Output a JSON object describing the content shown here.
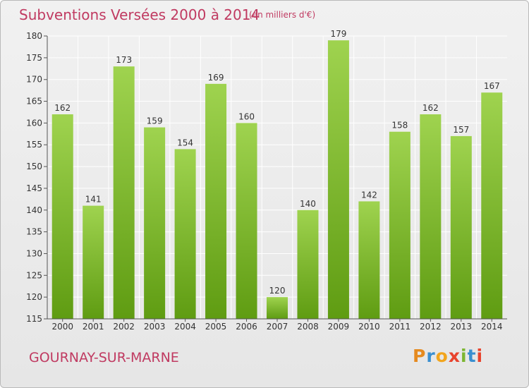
{
  "header": {
    "title": "Subventions Versées 2000 à 2014",
    "unit_note": "(en milliers d'€)"
  },
  "footer": {
    "place_name": "GOURNAY-SUR-MARNE",
    "logo_text": "Proxiti"
  },
  "colors": {
    "title": "#c03a61",
    "bar_top": "#9fd34f",
    "bar_bottom": "#5f9c12",
    "grid": "#ffffff",
    "axis": "#555555"
  },
  "chart_data": {
    "type": "bar",
    "title": "Subventions Versées 2000 à 2014",
    "subtitle": "(en milliers d'€)",
    "xlabel": "",
    "ylabel": "",
    "categories": [
      "2000",
      "2001",
      "2002",
      "2003",
      "2004",
      "2005",
      "2006",
      "2007",
      "2008",
      "2009",
      "2010",
      "2011",
      "2012",
      "2013",
      "2014"
    ],
    "values": [
      162,
      141,
      173,
      159,
      154,
      169,
      160,
      120,
      140,
      179,
      142,
      158,
      162,
      157,
      167
    ],
    "ylim": [
      115,
      180
    ],
    "yticks": [
      115,
      120,
      125,
      130,
      135,
      140,
      145,
      150,
      155,
      160,
      165,
      170,
      175,
      180
    ],
    "grid": true,
    "legend": "none"
  }
}
